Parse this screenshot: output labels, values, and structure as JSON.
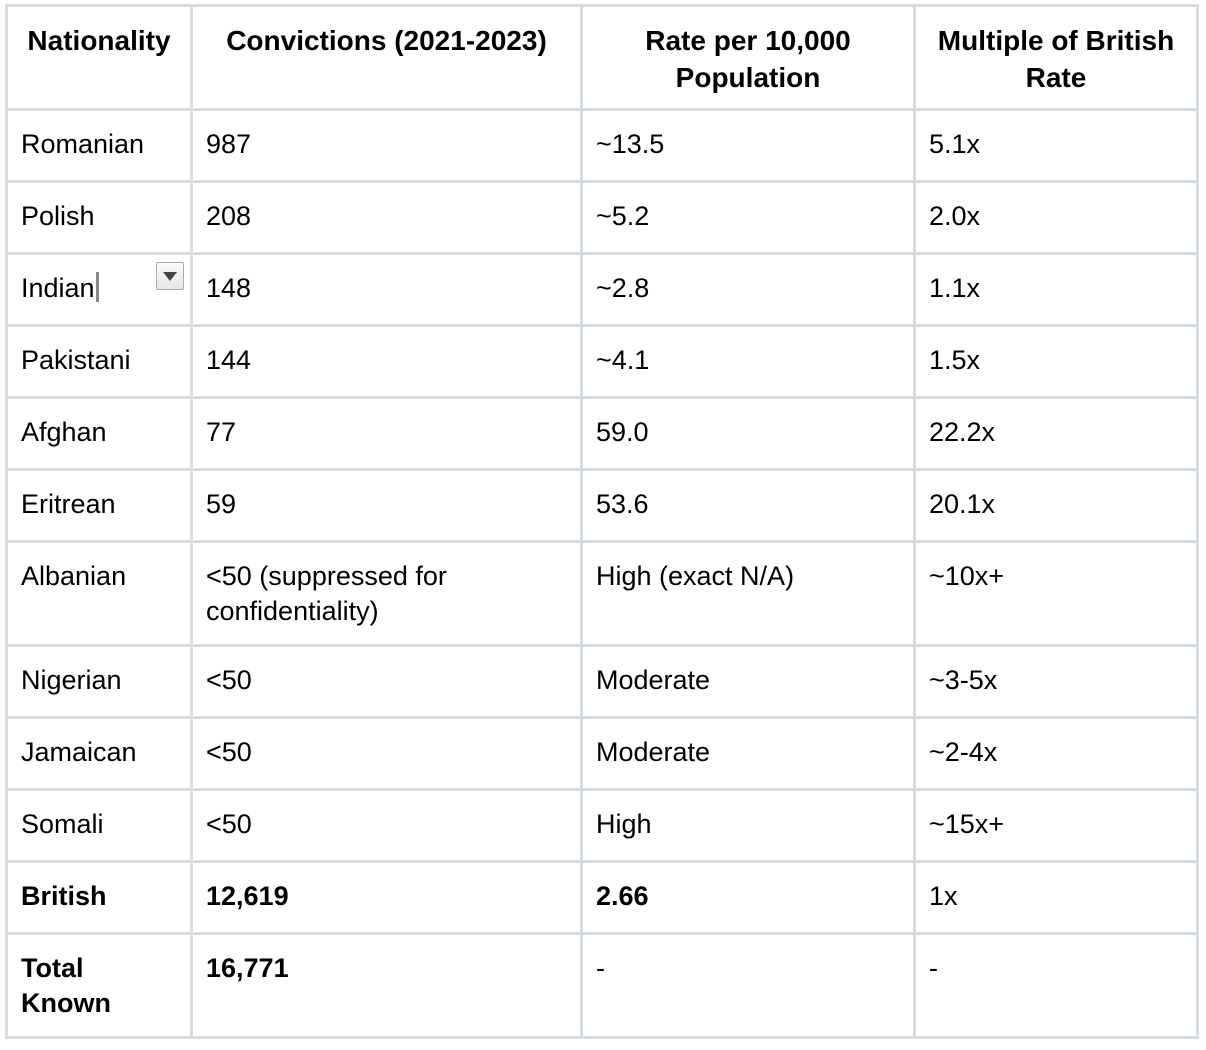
{
  "colors": {
    "table_border": "#d6dcdf",
    "page_background": "#ffffff",
    "text": "#000000",
    "dropdown_triangle": "#424242",
    "text_cursor": "#8a8a8a"
  },
  "table": {
    "columns": [
      {
        "key": "nationality",
        "label": "Nationality"
      },
      {
        "key": "convictions",
        "label": "Convictions (2021-2023)"
      },
      {
        "key": "rate",
        "label": "Rate per 10,000 Population"
      },
      {
        "key": "multiple",
        "label": "Multiple of British Rate"
      }
    ],
    "rows": [
      {
        "cells": [
          {
            "t": "Romanian"
          },
          {
            "t": "987"
          },
          {
            "t": "~13.5"
          },
          {
            "t": "5.1x"
          }
        ]
      },
      {
        "cells": [
          {
            "t": "Polish"
          },
          {
            "t": "208"
          },
          {
            "t": "~5.2"
          },
          {
            "t": "2.0x"
          }
        ]
      },
      {
        "cells": [
          {
            "t": "Indian",
            "caret": true,
            "dropdown": true
          },
          {
            "t": "148"
          },
          {
            "t": "~2.8"
          },
          {
            "t": "1.1x"
          }
        ]
      },
      {
        "cells": [
          {
            "t": "Pakistani"
          },
          {
            "t": "144"
          },
          {
            "t": "~4.1"
          },
          {
            "t": "1.5x"
          }
        ]
      },
      {
        "cells": [
          {
            "t": "Afghan"
          },
          {
            "t": "77"
          },
          {
            "t": "59.0"
          },
          {
            "t": "22.2x"
          }
        ]
      },
      {
        "cells": [
          {
            "t": "Eritrean"
          },
          {
            "t": "59"
          },
          {
            "t": "53.6"
          },
          {
            "t": "20.1x"
          }
        ]
      },
      {
        "cells": [
          {
            "t": "Albanian"
          },
          {
            "t": "<50 (suppressed for confidentiality)"
          },
          {
            "t": "High (exact N/A)"
          },
          {
            "t": "~10x+"
          }
        ]
      },
      {
        "cells": [
          {
            "t": "Nigerian"
          },
          {
            "t": "<50"
          },
          {
            "t": "Moderate"
          },
          {
            "t": "~3-5x"
          }
        ]
      },
      {
        "cells": [
          {
            "t": "Jamaican"
          },
          {
            "t": "<50"
          },
          {
            "t": "Moderate"
          },
          {
            "t": "~2-4x"
          }
        ]
      },
      {
        "cells": [
          {
            "t": "Somali"
          },
          {
            "t": "<50"
          },
          {
            "t": "High"
          },
          {
            "t": "~15x+"
          }
        ]
      },
      {
        "cells": [
          {
            "t": "British",
            "b": true
          },
          {
            "t": "12,619",
            "b": true
          },
          {
            "t": "2.66",
            "b": true
          },
          {
            "t": "1x"
          }
        ]
      },
      {
        "cells": [
          {
            "t": "Total Known",
            "b": true
          },
          {
            "t": "16,771",
            "b": true
          },
          {
            "t": "-"
          },
          {
            "t": "-"
          }
        ]
      }
    ]
  }
}
